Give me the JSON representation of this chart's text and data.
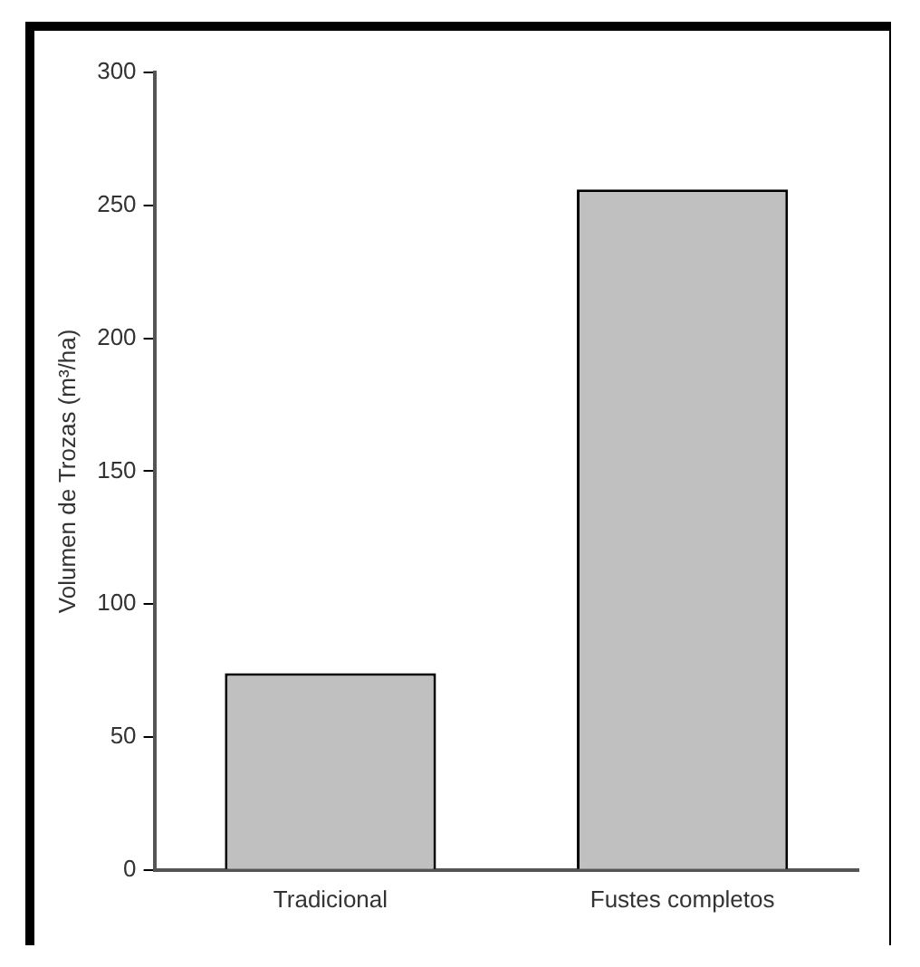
{
  "chart_data": {
    "type": "bar",
    "ylabel": "Volumen de Trozas (m³/ha)",
    "categories": [
      "Tradicional",
      "Fustes completos"
    ],
    "values": [
      74,
      256
    ],
    "color": "#c0c0c0",
    "ylim": [
      0,
      300
    ],
    "yticks": [
      0,
      50,
      100,
      150,
      200,
      250,
      300
    ],
    "grid": false,
    "legend": false
  }
}
